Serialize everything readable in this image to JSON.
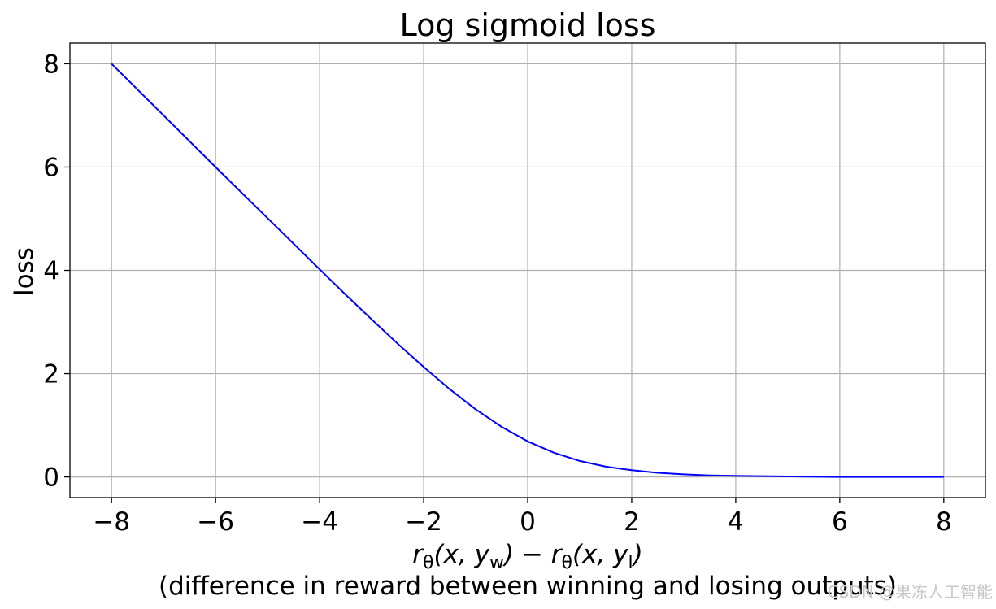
{
  "chart_data": {
    "type": "line",
    "title": "Log sigmoid loss",
    "ylabel": "loss",
    "xlabel_formula_parts": [
      "r",
      "θ",
      "(x, y",
      "w",
      ") − r",
      "θ",
      "(x, y",
      "l",
      ")"
    ],
    "xlabel_caption": "(difference in reward between winning and losing outputs)",
    "xlim": [
      -8.8,
      8.8
    ],
    "ylim": [
      -0.4,
      8.4
    ],
    "xticks": [
      -8,
      -6,
      -4,
      -2,
      0,
      2,
      4,
      6,
      8
    ],
    "xtick_labels": [
      "−8",
      "−6",
      "−4",
      "−2",
      "0",
      "2",
      "4",
      "6",
      "8"
    ],
    "yticks": [
      0,
      2,
      4,
      6,
      8
    ],
    "ytick_labels": [
      "0",
      "2",
      "4",
      "6",
      "8"
    ],
    "grid": true,
    "series": [
      {
        "color": "#0000ff",
        "x": [
          -8,
          -7,
          -6,
          -5,
          -4,
          -3.5,
          -3,
          -2.5,
          -2,
          -1.5,
          -1,
          -0.5,
          0,
          0.5,
          1,
          1.5,
          2,
          2.5,
          3,
          3.5,
          4,
          5,
          6,
          7,
          8
        ],
        "y": [
          8.0,
          7.0,
          6.0,
          5.01,
          4.02,
          3.53,
          3.05,
          2.58,
          2.13,
          1.7,
          1.31,
          0.97,
          0.69,
          0.47,
          0.31,
          0.2,
          0.13,
          0.08,
          0.05,
          0.03,
          0.02,
          0.01,
          0.0,
          0.0,
          0.0
        ]
      }
    ]
  },
  "watermark": "CSDN @果冻人工智能"
}
